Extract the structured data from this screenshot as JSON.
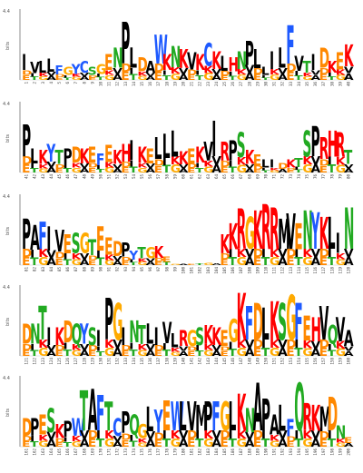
{
  "chart_data": {
    "type": "sequence-logo",
    "ylabel": "bits",
    "ymax_label": "4.4",
    "ylim": [
      0,
      4.4
    ],
    "rows": [
      {
        "positions": [
          1,
          2,
          3,
          4,
          5,
          6,
          7,
          8,
          9,
          10,
          11,
          12,
          13,
          14,
          15,
          16,
          17,
          18,
          19,
          20,
          21,
          22,
          23,
          24,
          25,
          26,
          27,
          28,
          29,
          30,
          31,
          32,
          33,
          34,
          35,
          36,
          37,
          38,
          39,
          40
        ],
        "top_residues": [
          "I",
          "V",
          "L",
          "L",
          "F",
          "G",
          "Y",
          "C",
          "S",
          "G",
          "E",
          "N",
          "P",
          "L",
          "D",
          "A",
          "W",
          "K",
          "N",
          "K",
          "V",
          "K",
          "C",
          "K",
          "L",
          "H",
          "N",
          "P",
          "L",
          "L",
          "I",
          "L",
          "F",
          "V",
          "T",
          "I",
          "D",
          "K",
          "E",
          "K"
        ],
        "heights": [
          1.6,
          1.1,
          1.2,
          1.3,
          0.9,
          0.8,
          1.0,
          1.2,
          0.8,
          1.0,
          1.6,
          2.0,
          3.6,
          2.0,
          1.4,
          1.2,
          2.8,
          1.6,
          2.1,
          1.9,
          1.7,
          1.6,
          2.3,
          1.8,
          1.5,
          1.4,
          1.8,
          2.4,
          1.9,
          0.8,
          1.8,
          2.0,
          3.4,
          1.5,
          1.2,
          1.6,
          2.0,
          1.2,
          1.7,
          2.2
        ]
      },
      {
        "positions": [
          41,
          42,
          43,
          44,
          45,
          46,
          47,
          48,
          49,
          50,
          51,
          52,
          53,
          54,
          55,
          56,
          57,
          58,
          59,
          60,
          61,
          62,
          63,
          64,
          65,
          66,
          67,
          68,
          69,
          70,
          71,
          72,
          73,
          74,
          75,
          76,
          77,
          78,
          79,
          80
        ],
        "top_residues": [
          "P",
          "L",
          "K",
          "Y",
          "T",
          "P",
          "D",
          "K",
          "E",
          "F",
          "E",
          "K",
          "H",
          "I",
          "K",
          "E",
          "L",
          "L",
          "L",
          "K",
          "E",
          "K",
          "V",
          "I",
          "R",
          "P",
          "S",
          "K",
          "E",
          "L",
          "I",
          "D",
          "K",
          "T",
          "S",
          "P",
          "R",
          "H",
          "R",
          "T"
        ],
        "heights": [
          3.0,
          1.5,
          1.4,
          1.8,
          1.4,
          1.5,
          1.6,
          1.5,
          1.6,
          1.2,
          1.7,
          1.4,
          1.8,
          2.0,
          1.6,
          1.5,
          2.2,
          2.4,
          2.6,
          1.3,
          1.5,
          1.6,
          1.9,
          3.2,
          1.9,
          2.0,
          2.5,
          1.4,
          1.1,
          0.8,
          0.8,
          0.6,
          0.8,
          0.9,
          2.6,
          2.9,
          2.2,
          2.6,
          2.5,
          1.4
        ]
      },
      {
        "positions": [
          81,
          82,
          83,
          84,
          85,
          86,
          87,
          88,
          89,
          90,
          91,
          92,
          93,
          94,
          95,
          96,
          97,
          98,
          99,
          100,
          101,
          102,
          103,
          104,
          105,
          106,
          107,
          108,
          109,
          110,
          111,
          112,
          113,
          114,
          115,
          116,
          117,
          118,
          119,
          120
        ],
        "top_residues": [
          "P",
          "A",
          "F",
          "I",
          "V",
          "E",
          "S",
          "G",
          "T",
          "E",
          "E",
          "D",
          "P",
          "Y",
          "T",
          "G",
          "K",
          "E",
          "-",
          "-",
          "-",
          "-",
          "-",
          "-",
          "K",
          "K",
          "R",
          "G",
          "K",
          "R",
          "R",
          "M",
          "V",
          "E",
          "N",
          "Y",
          "K",
          "L",
          "I",
          "N"
        ],
        "heights": [
          2.9,
          2.5,
          2.7,
          2.4,
          2.2,
          1.9,
          2.0,
          2.0,
          1.6,
          2.4,
          1.7,
          1.5,
          1.4,
          0.9,
          1.1,
          1.1,
          1.2,
          0.5,
          0.2,
          0.2,
          0.2,
          0.3,
          0.4,
          0.3,
          1.9,
          2.6,
          3.5,
          3.0,
          3.4,
          3.8,
          3.6,
          2.9,
          3.2,
          2.6,
          3.4,
          3.3,
          3.0,
          3.0,
          2.0,
          3.6
        ]
      },
      {
        "positions": [
          121,
          122,
          123,
          124,
          125,
          126,
          127,
          128,
          129,
          130,
          131,
          132,
          133,
          134,
          135,
          136,
          137,
          138,
          139,
          140,
          141,
          142,
          143,
          144,
          145,
          146,
          147,
          148,
          149,
          150,
          151,
          152,
          153,
          154,
          155,
          156,
          157,
          158,
          159,
          160
        ],
        "top_residues": [
          "D",
          "N",
          "T",
          "I",
          "K",
          "D",
          "Q",
          "Y",
          "S",
          "I",
          "P",
          "G",
          "I",
          "N",
          "T",
          "L",
          "I",
          "V",
          "L",
          "R",
          "G",
          "S",
          "K",
          "K",
          "E",
          "G",
          "K",
          "F",
          "D",
          "L",
          "K",
          "S",
          "G",
          "F",
          "E",
          "H",
          "V",
          "Q",
          "V",
          "A"
        ],
        "heights": [
          2.0,
          2.0,
          3.1,
          1.8,
          1.8,
          2.2,
          2.0,
          2.0,
          1.8,
          1.6,
          3.6,
          3.3,
          1.8,
          2.2,
          1.9,
          2.0,
          1.8,
          2.1,
          1.4,
          1.6,
          1.6,
          1.8,
          1.9,
          1.8,
          1.6,
          2.3,
          3.9,
          3.1,
          3.3,
          3.0,
          3.4,
          3.3,
          3.8,
          3.3,
          2.5,
          2.4,
          3.1,
          1.9,
          2.4,
          1.6
        ]
      },
      {
        "positions": [
          161,
          162,
          163,
          164,
          165,
          166,
          167,
          168,
          169,
          170,
          171,
          172,
          173,
          174,
          175,
          176,
          177,
          178,
          179,
          180,
          181,
          182,
          183,
          184,
          185,
          186,
          187,
          188,
          189,
          190,
          191,
          192,
          193,
          194,
          195,
          196,
          197,
          198,
          199,
          200
        ],
        "top_residues": [
          "D",
          "P",
          "E",
          "S",
          "K",
          "P",
          "W",
          "T",
          "A",
          "F",
          "T",
          "C",
          "P",
          "Q",
          "G",
          "L",
          "Y",
          "E",
          "W",
          "L",
          "V",
          "M",
          "P",
          "F",
          "G",
          "L",
          "K",
          "N",
          "A",
          "P",
          "A",
          "L",
          "F",
          "Q",
          "R",
          "K",
          "M",
          "D",
          "N",
          "E"
        ],
        "heights": [
          1.8,
          1.8,
          2.0,
          2.4,
          1.4,
          1.6,
          1.8,
          3.5,
          3.6,
          3.2,
          2.8,
          1.8,
          2.2,
          2.0,
          1.4,
          2.5,
          2.3,
          2.9,
          2.8,
          2.8,
          2.8,
          2.6,
          2.8,
          2.8,
          2.8,
          2.8,
          3.3,
          2.4,
          4.0,
          3.0,
          2.0,
          2.6,
          1.7,
          4.0,
          2.7,
          2.6,
          2.5,
          3.1,
          1.3,
          0.6
        ]
      }
    ],
    "colors": {
      "hydrophobic": "#000000",
      "polar": "#22aa22",
      "neutral": "#ff00ff",
      "basic": "#ff0000",
      "acidic": "#ff8800",
      "aromatic": "#1e5aff",
      "cysteine": "#1e5aff",
      "glycine": "#ffaa00"
    }
  }
}
